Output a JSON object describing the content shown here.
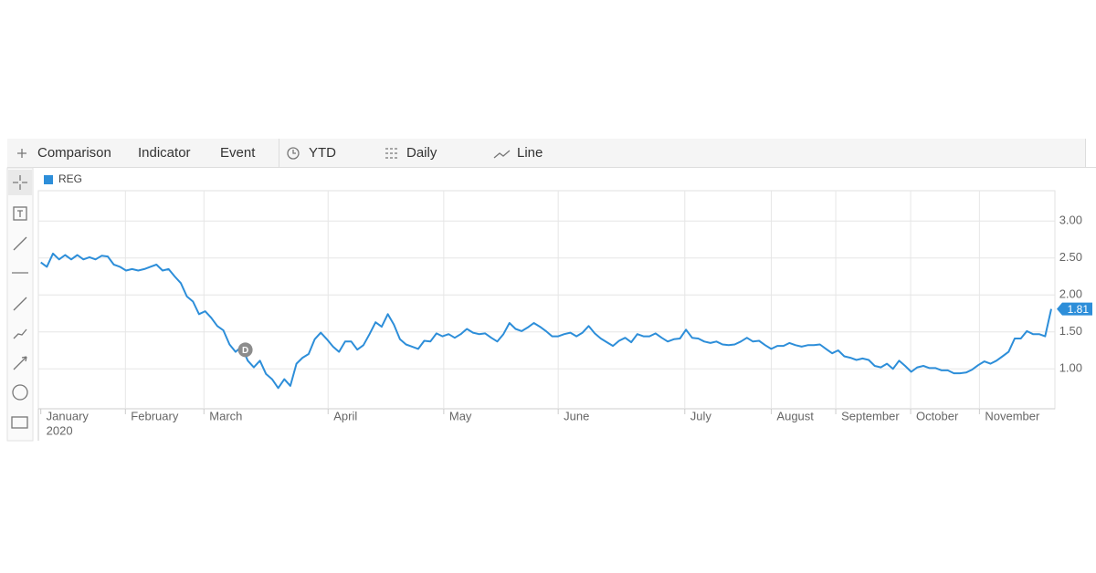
{
  "toolbar": {
    "items": [
      "Comparison",
      "Indicator",
      "Event"
    ],
    "range": "YTD",
    "interval": "Daily",
    "style": "Line"
  },
  "chart_data": {
    "type": "line",
    "x_year": "2020",
    "xlim": [
      -0.4,
      166.6
    ],
    "xticks": [
      {
        "value": 0,
        "label": "January"
      },
      {
        "value": 13.9,
        "label": "February"
      },
      {
        "value": 26.8,
        "label": "March"
      },
      {
        "value": 47.2,
        "label": "April"
      },
      {
        "value": 66.2,
        "label": "May"
      },
      {
        "value": 85,
        "label": "June"
      },
      {
        "value": 105.8,
        "label": "July"
      },
      {
        "value": 120,
        "label": "August"
      },
      {
        "value": 130.6,
        "label": "September"
      },
      {
        "value": 142.9,
        "label": "October"
      },
      {
        "value": 154.2,
        "label": "November"
      }
    ],
    "ylim": [
      0.46,
      3.41
    ],
    "yticks": [
      {
        "value": 1,
        "label": "1.00"
      },
      {
        "value": 1.5,
        "label": "1.50"
      },
      {
        "value": 2,
        "label": "2.00"
      },
      {
        "value": 2.5,
        "label": "2.50"
      },
      {
        "value": 3,
        "label": "3.00"
      }
    ],
    "grid": true,
    "events": [
      {
        "label": "D",
        "x": 33.6
      }
    ],
    "series": [
      {
        "name": "REG",
        "color": "#2d8ed9",
        "values": [
          2.44,
          2.38,
          2.56,
          2.48,
          2.54,
          2.48,
          2.54,
          2.48,
          2.51,
          2.48,
          2.53,
          2.52,
          2.41,
          2.38,
          2.33,
          2.35,
          2.33,
          2.35,
          2.38,
          2.41,
          2.33,
          2.35,
          2.25,
          2.16,
          1.98,
          1.91,
          1.74,
          1.78,
          1.69,
          1.58,
          1.52,
          1.33,
          1.23,
          1.3,
          1.11,
          1.02,
          1.11,
          0.93,
          0.86,
          0.74,
          0.86,
          0.77,
          1.07,
          1.15,
          1.2,
          1.4,
          1.49,
          1.4,
          1.3,
          1.23,
          1.37,
          1.37,
          1.26,
          1.32,
          1.47,
          1.63,
          1.57,
          1.74,
          1.6,
          1.4,
          1.33,
          1.3,
          1.27,
          1.38,
          1.37,
          1.48,
          1.44,
          1.47,
          1.42,
          1.47,
          1.54,
          1.49,
          1.47,
          1.48,
          1.42,
          1.37,
          1.47,
          1.62,
          1.54,
          1.51,
          1.56,
          1.62,
          1.57,
          1.51,
          1.44,
          1.44,
          1.47,
          1.49,
          1.44,
          1.49,
          1.58,
          1.48,
          1.41,
          1.36,
          1.31,
          1.38,
          1.42,
          1.36,
          1.47,
          1.44,
          1.44,
          1.48,
          1.42,
          1.37,
          1.4,
          1.41,
          1.53,
          1.42,
          1.41,
          1.37,
          1.35,
          1.37,
          1.33,
          1.32,
          1.33,
          1.37,
          1.42,
          1.37,
          1.38,
          1.32,
          1.27,
          1.31,
          1.31,
          1.35,
          1.32,
          1.3,
          1.32,
          1.32,
          1.33,
          1.27,
          1.21,
          1.25,
          1.17,
          1.15,
          1.12,
          1.14,
          1.12,
          1.04,
          1.02,
          1.07,
          1.0,
          1.11,
          1.04,
          0.96,
          1.02,
          1.04,
          1.01,
          1.01,
          0.98,
          0.98,
          0.94,
          0.94,
          0.95,
          0.99,
          1.05,
          1.1,
          1.07,
          1.11,
          1.17,
          1.23,
          1.41,
          1.41,
          1.51,
          1.47,
          1.47,
          1.44,
          1.81
        ]
      }
    ]
  }
}
